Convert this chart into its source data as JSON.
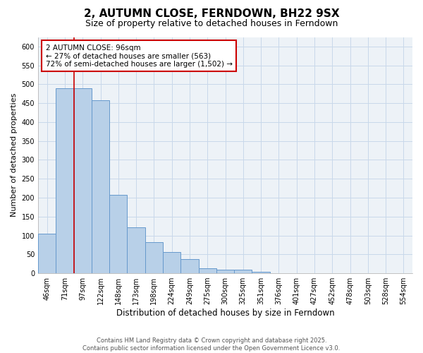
{
  "title": "2, AUTUMN CLOSE, FERNDOWN, BH22 9SX",
  "subtitle": "Size of property relative to detached houses in Ferndown",
  "xlabel": "Distribution of detached houses by size in Ferndown",
  "ylabel": "Number of detached properties",
  "categories": [
    "46sqm",
    "71sqm",
    "97sqm",
    "122sqm",
    "148sqm",
    "173sqm",
    "198sqm",
    "224sqm",
    "249sqm",
    "275sqm",
    "300sqm",
    "325sqm",
    "351sqm",
    "376sqm",
    "401sqm",
    "427sqm",
    "452sqm",
    "478sqm",
    "503sqm",
    "528sqm",
    "554sqm"
  ],
  "values": [
    105,
    490,
    490,
    458,
    207,
    122,
    82,
    57,
    38,
    13,
    10,
    10,
    3,
    0,
    0,
    0,
    0,
    0,
    0,
    0,
    0
  ],
  "bar_color": "#b8d0e8",
  "bar_edge_color": "#6699cc",
  "vline_color": "#cc0000",
  "vline_pos": 1.5,
  "annotation_text": "2 AUTUMN CLOSE: 96sqm\n← 27% of detached houses are smaller (563)\n72% of semi-detached houses are larger (1,502) →",
  "annotation_box_edgecolor": "#cc0000",
  "ylim": [
    0,
    625
  ],
  "yticks": [
    0,
    50,
    100,
    150,
    200,
    250,
    300,
    350,
    400,
    450,
    500,
    550,
    600
  ],
  "grid_color": "#c8d8ea",
  "background_color": "#edf2f7",
  "footer_text": "Contains HM Land Registry data © Crown copyright and database right 2025.\nContains public sector information licensed under the Open Government Licence v3.0.",
  "title_fontsize": 11,
  "subtitle_fontsize": 9,
  "tick_fontsize": 7,
  "xlabel_fontsize": 8.5,
  "ylabel_fontsize": 8,
  "annotation_fontsize": 7.5,
  "footer_fontsize": 6
}
